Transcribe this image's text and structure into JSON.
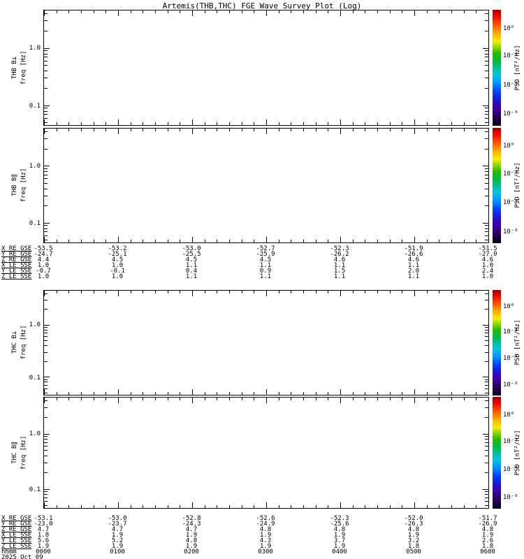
{
  "title": "Artemis(THB,THC) FGE Wave Survey Plot (Log)",
  "panels": [
    {
      "name": "THB B⊥",
      "axis": "freq [Hz]",
      "yticks": [
        "1.0",
        "0.1"
      ]
    },
    {
      "name": "THB B∥",
      "axis": "freq [Hz]",
      "yticks": [
        "1.0",
        "0.1"
      ]
    },
    {
      "name": "THC B⊥",
      "axis": "freq [Hz]",
      "yticks": [
        "1.0",
        "0.1"
      ]
    },
    {
      "name": "THC B∥",
      "axis": "freq [Hz]",
      "yticks": [
        "1.0",
        "0.1"
      ]
    }
  ],
  "colorbar": {
    "label": "PSD [nT²/Hz]",
    "ticks": [
      "10⁰",
      "10⁻²",
      "10⁻⁴",
      "10⁻⁶"
    ]
  },
  "ephemeris_upper": {
    "rows": [
      {
        "label": "X_RE_GSE",
        "values": [
          "-53.5",
          "-53.2",
          "-53.0",
          "-52.7",
          "-52.3",
          "-51.9",
          "-51.5"
        ]
      },
      {
        "label": "Y_RE_GSE",
        "values": [
          "-24.7",
          "-25.1",
          "-25.5",
          "-25.9",
          "-26.2",
          "-26.6",
          "-27.0"
        ]
      },
      {
        "label": "Z_RE_GSE",
        "values": [
          "4.4",
          "4.5",
          "4.5",
          "4.5",
          "4.6",
          "4.6",
          "4.6"
        ]
      },
      {
        "label": "X_LE_SSE",
        "values": [
          "1.0",
          "1.0",
          "1.1",
          "1.1",
          "1.1",
          "1.1",
          "1.0"
        ]
      },
      {
        "label": "Y_LE_SSE",
        "values": [
          "-0.7",
          "-0.1",
          "0.4",
          "0.9",
          "1.5",
          "2.0",
          "2.4"
        ]
      },
      {
        "label": "Z_LE_SSE",
        "values": [
          "1.0",
          "1.0",
          "1.1",
          "1.1",
          "1.1",
          "1.1",
          "1.0"
        ]
      }
    ]
  },
  "ephemeris_lower": {
    "rows": [
      {
        "label": "X_RE_GSE",
        "values": [
          "-53.1",
          "-53.0",
          "-52.8",
          "-52.6",
          "-52.3",
          "-52.0",
          "-51.7"
        ]
      },
      {
        "label": "Y_RE_GSE",
        "values": [
          "-23.0",
          "-23.7",
          "-24.3",
          "-24.9",
          "-25.6",
          "-26.3",
          "-26.9"
        ]
      },
      {
        "label": "Z_RE_GSE",
        "values": [
          "4.7",
          "4.7",
          "4.7",
          "4.8",
          "4.8",
          "4.8",
          "4.8"
        ]
      },
      {
        "label": "X_LE_SSE",
        "values": [
          "1.8",
          "1.9",
          "1.9",
          "1.9",
          "1.9",
          "1.9",
          "1.9"
        ]
      },
      {
        "label": "Y_LE_SSE",
        "values": [
          "5.6",
          "5.2",
          "4.8",
          "4.3",
          "3.7",
          "3.2",
          "2.6"
        ]
      },
      {
        "label": "Z_LE_SSE",
        "values": [
          "1.9",
          "1.9",
          "1.9",
          "1.9",
          "1.9",
          "1.8",
          "1.8"
        ]
      }
    ],
    "time_row": {
      "label": "hhmm",
      "values": [
        "0000",
        "0100",
        "0200",
        "0300",
        "0400",
        "0500",
        "0600"
      ]
    },
    "date": "2025 Oct 09"
  },
  "chart_data": [
    {
      "type": "heatmap",
      "title": "THB B⊥",
      "ylabel": "freq [Hz]",
      "y_scale": "log",
      "y_ticks": [
        1.0,
        0.1
      ],
      "y_range": [
        0.045,
        4.5
      ],
      "x_ticks": [
        "0000",
        "0100",
        "0200",
        "0300",
        "0400",
        "0500",
        "0600"
      ],
      "colorbar_label": "PSD [nT²/Hz]",
      "colorbar_ticks": [
        "10⁰",
        "10⁻²",
        "10⁻⁴",
        "10⁻⁶"
      ],
      "values": [],
      "note": "panel rendered empty (no spectrogram data shown)"
    },
    {
      "type": "heatmap",
      "title": "THB B∥",
      "ylabel": "freq [Hz]",
      "y_scale": "log",
      "y_ticks": [
        1.0,
        0.1
      ],
      "y_range": [
        0.045,
        4.5
      ],
      "x_ticks": [
        "0000",
        "0100",
        "0200",
        "0300",
        "0400",
        "0500",
        "0600"
      ],
      "colorbar_label": "PSD [nT²/Hz]",
      "colorbar_ticks": [
        "10⁰",
        "10⁻²",
        "10⁻⁴",
        "10⁻⁶"
      ],
      "values": [],
      "note": "panel rendered empty (no spectrogram data shown)"
    },
    {
      "type": "heatmap",
      "title": "THC B⊥",
      "ylabel": "freq [Hz]",
      "y_scale": "log",
      "y_ticks": [
        1.0,
        0.1
      ],
      "y_range": [
        0.045,
        4.5
      ],
      "x_ticks": [
        "0000",
        "0100",
        "0200",
        "0300",
        "0400",
        "0500",
        "0600"
      ],
      "colorbar_label": "PSD [nT²/Hz]",
      "colorbar_ticks": [
        "10⁰",
        "10⁻²",
        "10⁻⁴",
        "10⁻⁶"
      ],
      "values": [],
      "note": "panel rendered empty (no spectrogram data shown)"
    },
    {
      "type": "heatmap",
      "title": "THC B∥",
      "ylabel": "freq [Hz]",
      "y_scale": "log",
      "y_ticks": [
        1.0,
        0.1
      ],
      "y_range": [
        0.045,
        4.5
      ],
      "x_ticks": [
        "0000",
        "0100",
        "0200",
        "0300",
        "0400",
        "0500",
        "0600"
      ],
      "colorbar_label": "PSD [nT²/Hz]",
      "colorbar_ticks": [
        "10⁰",
        "10⁻²",
        "10⁻⁴",
        "10⁻⁶"
      ],
      "values": [],
      "note": "panel rendered empty (no spectrogram data shown)"
    }
  ]
}
